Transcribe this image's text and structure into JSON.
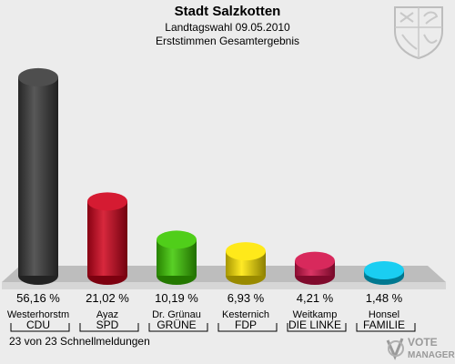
{
  "header": {
    "title": "Stadt Salzkotten",
    "subtitle": "Landtagswahl 09.05.2010",
    "subtitle2": "Erststimmen Gesamtergebnis"
  },
  "footer": {
    "text": "23 von 23 Schnellmeldungen"
  },
  "brand": {
    "line1": "VOTE",
    "line2": "MANAGER"
  },
  "chart_data": {
    "type": "bar",
    "categories": [
      "CDU",
      "SPD",
      "GRÜNE",
      "FDP",
      "DIE LINKE",
      "FAMILIE"
    ],
    "candidates": [
      "Westerhorstm",
      "Ayaz",
      "Dr. Grünau",
      "Kesternich",
      "Weitkamp",
      "Honsel"
    ],
    "values": [
      56.16,
      21.02,
      10.19,
      6.93,
      4.21,
      1.48
    ],
    "value_labels": [
      "56,16 %",
      "21,02 %",
      "10,19 %",
      "6,93 %",
      "4,21 %",
      "1,48 %"
    ],
    "colors": [
      "#3a3a3a",
      "#d0021b",
      "#3cc800",
      "#ffe600",
      "#d4114a",
      "#00c8f0"
    ],
    "ylim": [
      0,
      60
    ],
    "grid": false,
    "legend": "none"
  }
}
